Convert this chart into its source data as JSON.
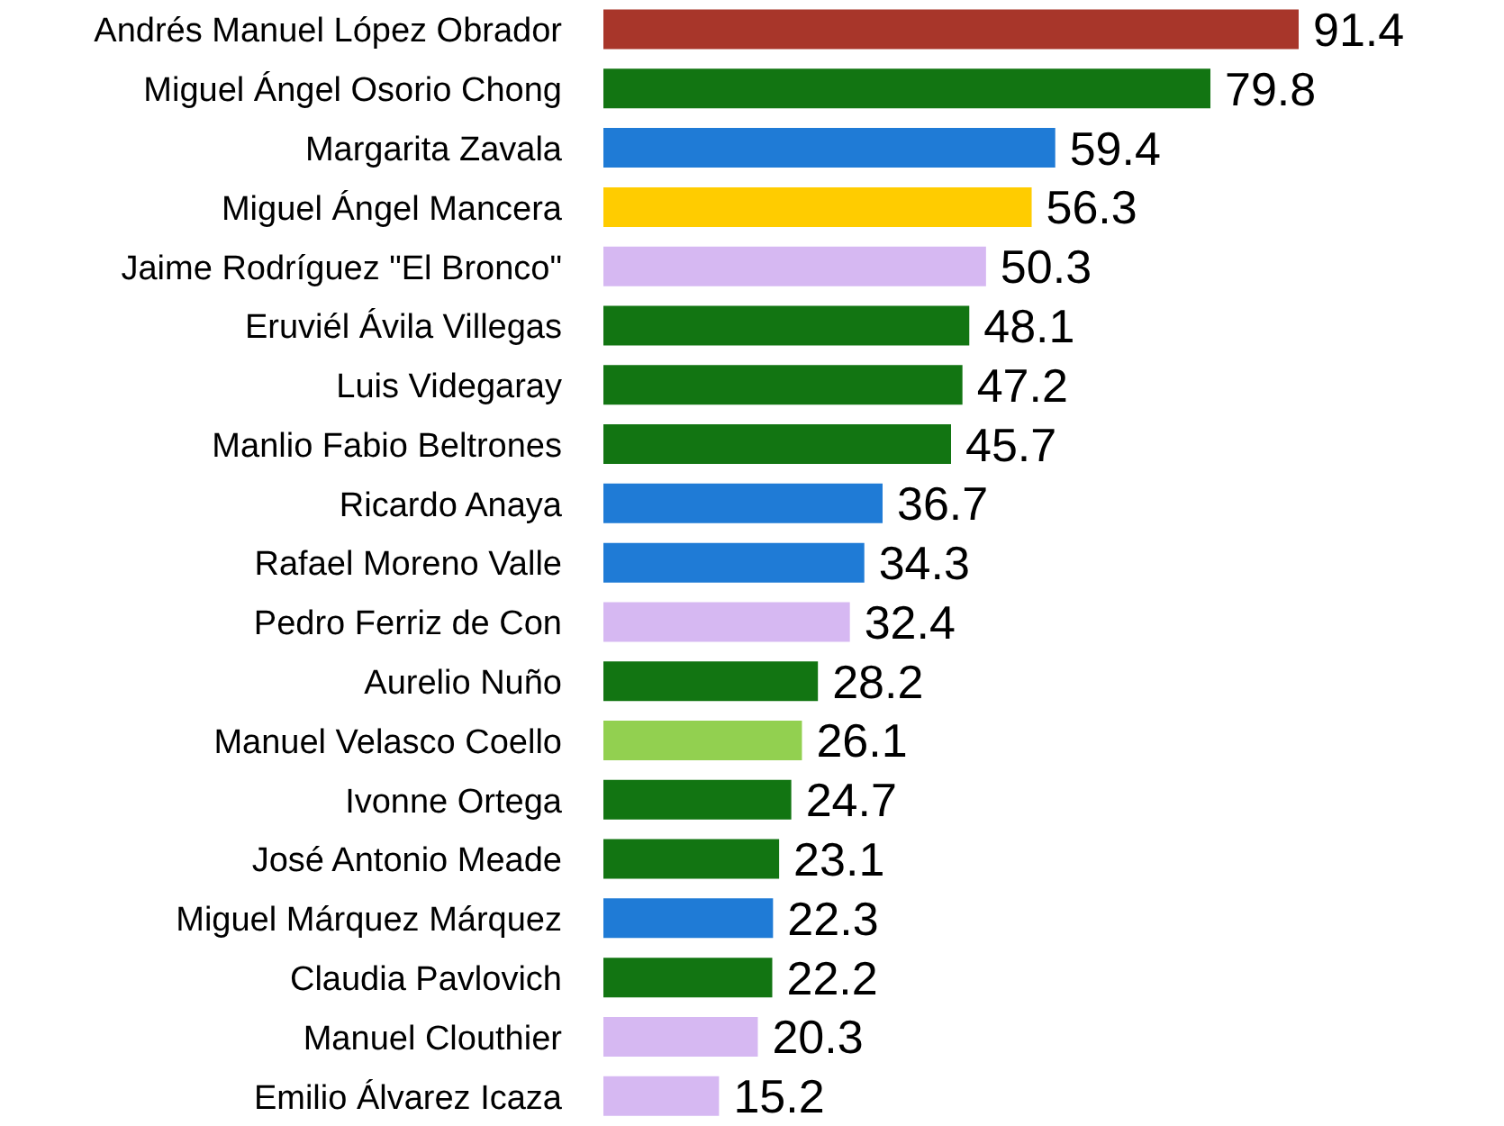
{
  "chart_data": {
    "type": "bar",
    "orientation": "horizontal",
    "categories": [
      "Andrés Manuel López Obrador",
      "Miguel Ángel Osorio Chong",
      "Margarita Zavala",
      "Miguel Ángel Mancera",
      "Jaime Rodríguez \"El Bronco\"",
      "Eruviél Ávila Villegas",
      "Luis Videgaray",
      "Manlio Fabio Beltrones",
      "Ricardo Anaya",
      "Rafael Moreno Valle",
      "Pedro Ferriz de Con",
      "Aurelio Nuño",
      "Manuel Velasco Coello",
      "Ivonne Ortega",
      "José Antonio Meade",
      "Miguel Márquez Márquez",
      "Claudia Pavlovich",
      "Manuel Clouthier",
      "Emilio Álvarez Icaza"
    ],
    "values": [
      91.4,
      79.8,
      59.4,
      56.3,
      50.3,
      48.1,
      47.2,
      45.7,
      36.7,
      34.3,
      32.4,
      28.2,
      26.1,
      24.7,
      23.1,
      22.3,
      22.2,
      20.3,
      15.2
    ],
    "colors": [
      "#a8362a",
      "#127512",
      "#1f7bd6",
      "#ffcc00",
      "#d6b8f2",
      "#127512",
      "#127512",
      "#127512",
      "#1f7bd6",
      "#1f7bd6",
      "#d6b8f2",
      "#127512",
      "#92d050",
      "#127512",
      "#127512",
      "#1f7bd6",
      "#127512",
      "#d6b8f2",
      "#d6b8f2"
    ],
    "data_labels": true,
    "tick_labels": "y"
  }
}
